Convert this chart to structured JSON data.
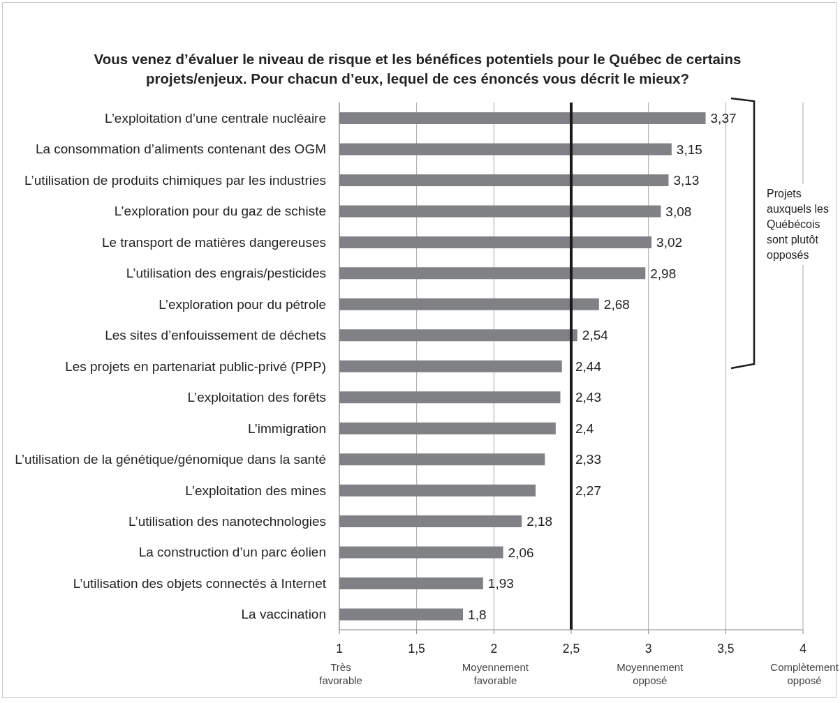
{
  "chart_data": {
    "type": "bar",
    "orientation": "horizontal",
    "title": "Vous venez d’évaluer le niveau de risque et les bénéfices potentiels pour le Québec de certains projets/enjeux. Pour chacun d’eux, lequel de ces énoncés vous décrit le mieux?",
    "categories": [
      "L’exploitation d’une centrale nucléaire",
      "La consommation d’aliments contenant des OGM",
      "L’utilisation de produits chimiques par les industries",
      "L’exploration pour du gaz de schiste",
      "Le transport de matières dangereuses",
      "L’utilisation des engrais/pesticides",
      "L’exploration pour du pétrole",
      "Les sites d’enfouissement de déchets",
      "Les projets en partenariat public-privé (PPP)",
      "L’exploitation des forêts",
      "L’immigration",
      "L’utilisation de la génétique/génomique dans la santé",
      "L’exploitation des mines",
      "L’utilisation des nanotechnologies",
      "La construction d’un parc éolien",
      "L’utilisation des objets connectés à Internet",
      "La vaccination"
    ],
    "values": [
      3.37,
      3.15,
      3.13,
      3.08,
      3.02,
      2.98,
      2.68,
      2.54,
      2.44,
      2.43,
      2.4,
      2.33,
      2.27,
      2.18,
      2.06,
      1.93,
      1.8
    ],
    "value_labels": [
      "3,37",
      "3,15",
      "3,13",
      "3,08",
      "3,02",
      "2,98",
      "2,68",
      "2,54",
      "2,44",
      "2,43",
      "2,4",
      "2,33",
      "2,27",
      "2,18",
      "2,06",
      "1,93",
      "1,8"
    ],
    "color": "#808184",
    "xlim": [
      1,
      4
    ],
    "xticks": [
      {
        "value": 1,
        "label": "1\nTrès favorable"
      },
      {
        "value": 1.5,
        "label": "1,5"
      },
      {
        "value": 2,
        "label": "2\nMoyennement favorable"
      },
      {
        "value": 2.5,
        "label": "2,5"
      },
      {
        "value": 3,
        "label": "3\nMoyennement opposé"
      },
      {
        "value": 3.5,
        "label": "3,5"
      },
      {
        "value": 4,
        "label": "4\nComplètement opposé"
      }
    ],
    "grid": "x",
    "ref_lines": [
      {
        "axis": "x",
        "value": 2.5,
        "color": "#1a1a1a"
      }
    ],
    "annotations": [
      "Projets auxquels les Québécois sont plutôt opposés"
    ]
  }
}
